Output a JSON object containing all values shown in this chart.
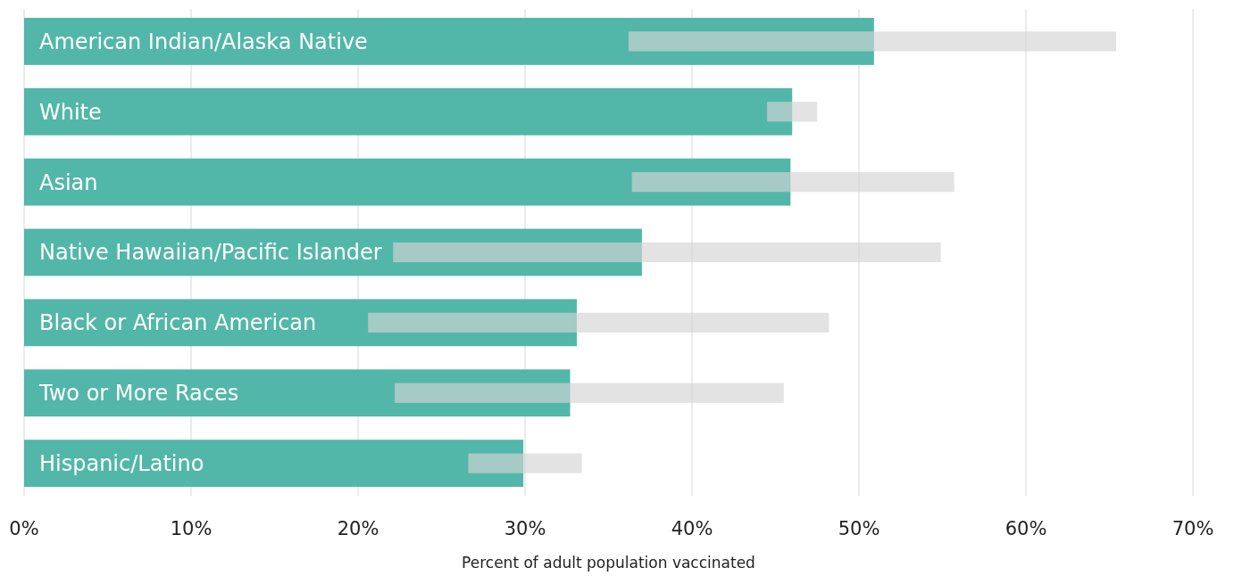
{
  "chart_data": {
    "type": "bar",
    "orientation": "horizontal",
    "xlabel": "Percent of adult population vaccinated",
    "categories": [
      "American Indian/Alaska Native",
      "White",
      "Asian",
      "Native Hawaiian/Pacific Islander",
      "Black or African American",
      "Two or More Races",
      "Hispanic/Latino"
    ],
    "series": [
      {
        "color": "#52b7a9",
        "values": [
          50.9,
          46.0,
          45.9,
          37.0,
          33.1,
          32.7,
          29.9
        ]
      },
      {
        "color": "#d4d4d4",
        "base": [
          36.2,
          44.5,
          36.4,
          22.1,
          20.6,
          22.2,
          26.6
        ],
        "values": [
          29.2,
          3.0,
          19.3,
          32.8,
          27.6,
          23.3,
          6.8
        ]
      }
    ],
    "xlim": [
      0,
      70
    ],
    "xticks": [
      {
        "value": 0,
        "label": "0%"
      },
      {
        "value": 10,
        "label": "10%"
      },
      {
        "value": 20,
        "label": "20%"
      },
      {
        "value": 30,
        "label": "30%"
      },
      {
        "value": 40,
        "label": "40%"
      },
      {
        "value": 50,
        "label": "50%"
      },
      {
        "value": 60,
        "label": "60%"
      },
      {
        "value": 70,
        "label": "70%"
      }
    ],
    "grid": "x"
  }
}
